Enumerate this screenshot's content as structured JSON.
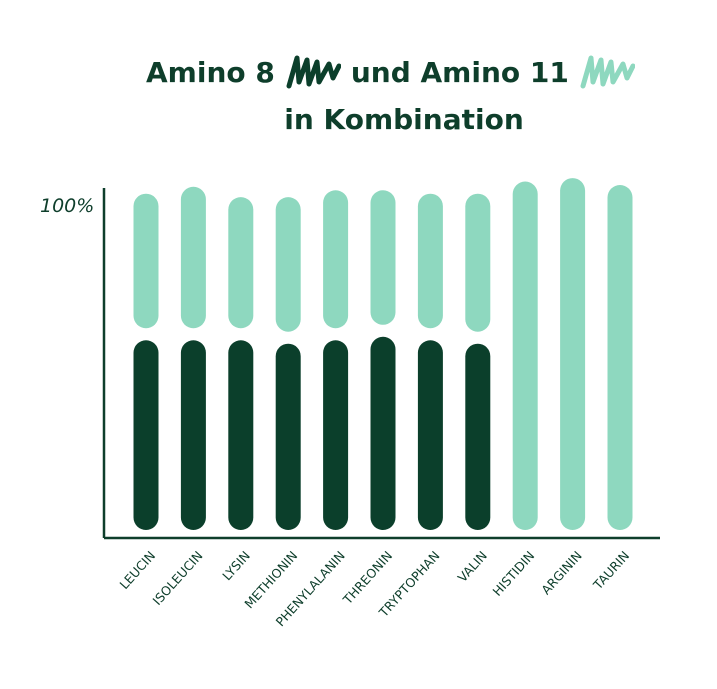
{
  "title": {
    "part1": "Amino 8",
    "part2": "und Amino 11",
    "line2": "in Kombination"
  },
  "colors": {
    "amino8": "#0b3f2b",
    "amino11": "#8ed8bf",
    "axis": "#0e3e2b",
    "text": "#0e3e2b"
  },
  "chart_data": {
    "type": "bar",
    "stacked": true,
    "ylabel_tick": "100%",
    "ylim": [
      0,
      100
    ],
    "categories": [
      "LEUCIN",
      "ISOLEUCIN",
      "LYSIN",
      "METHIONIN",
      "PHENYLALANIN",
      "THREONIN",
      "TRYPTOPHAN",
      "VALIN",
      "HISTIDIN",
      "ARGININ",
      "TAURIN"
    ],
    "series": [
      {
        "name": "Amino 8",
        "values": [
          55,
          55,
          55,
          54,
          55,
          56,
          55,
          54,
          0,
          0,
          0
        ]
      },
      {
        "name": "Amino 11",
        "values": [
          39,
          41,
          38,
          39,
          40,
          39,
          39,
          40,
          101,
          102,
          100
        ]
      }
    ]
  }
}
